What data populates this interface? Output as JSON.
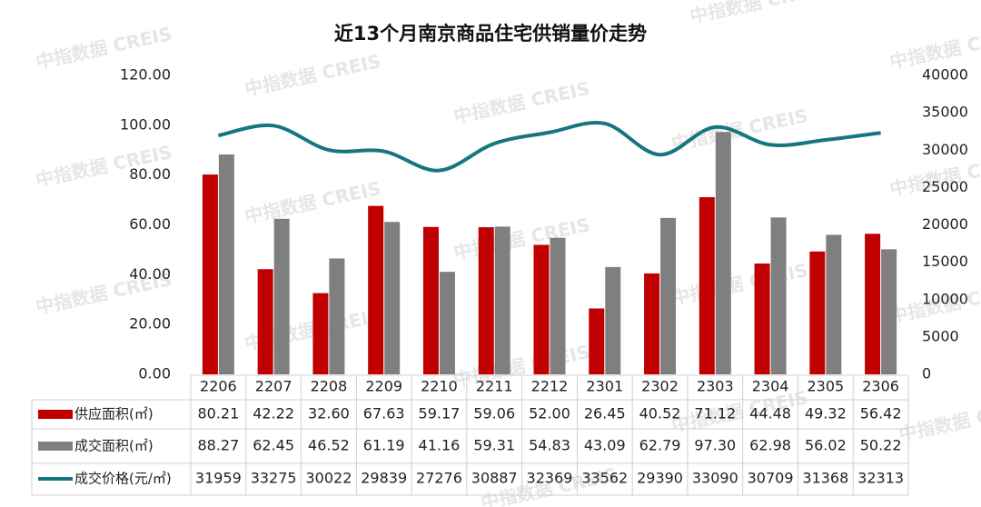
{
  "watermark": "中指数据 CREIS",
  "chart_data": {
    "type": "bar-line",
    "title": "近13个月南京商品住宅供销量价走势",
    "categories": [
      "2206",
      "2207",
      "2208",
      "2209",
      "2210",
      "2211",
      "2212",
      "2301",
      "2302",
      "2303",
      "2304",
      "2305",
      "2306"
    ],
    "series": [
      {
        "name": "供应面积(㎡)",
        "type": "bar",
        "color": "#c00000",
        "values": [
          80.21,
          42.22,
          32.6,
          67.63,
          59.17,
          59.06,
          52,
          26.45,
          40.52,
          71.12,
          44.48,
          49.32,
          56.42
        ],
        "value_labels": [
          "80.21",
          "42.22",
          "32.60",
          "67.63",
          "59.17",
          "59.06",
          "52.00",
          "26.45",
          "40.52",
          "71.12",
          "44.48",
          "49.32",
          "56.42"
        ]
      },
      {
        "name": "成交面积(㎡)",
        "type": "bar",
        "color": "#7f7f7f",
        "values": [
          88.27,
          62.45,
          46.52,
          61.19,
          41.16,
          59.31,
          54.83,
          43.09,
          62.79,
          97.3,
          62.98,
          56.02,
          50.22
        ],
        "value_labels": [
          "88.27",
          "62.45",
          "46.52",
          "61.19",
          "41.16",
          "59.31",
          "54.83",
          "43.09",
          "62.79",
          "97.30",
          "62.98",
          "56.02",
          "50.22"
        ]
      },
      {
        "name": "成交价格(元/㎡)",
        "type": "line",
        "axis": "y2",
        "color": "#16767e",
        "values": [
          31959,
          33275,
          30022,
          29839,
          27276,
          30887,
          32369,
          33562,
          29390,
          33090,
          30709,
          31368,
          32313
        ]
      }
    ],
    "ylim": [
      0,
      120
    ],
    "yticks": [
      {
        "value": 0,
        "label": "0.00"
      },
      {
        "value": 20,
        "label": "20.00"
      },
      {
        "value": 40,
        "label": "40.00"
      },
      {
        "value": 60,
        "label": "60.00"
      },
      {
        "value": 80,
        "label": "80.00"
      },
      {
        "value": 100,
        "label": "100.00"
      },
      {
        "value": 120,
        "label": "120.00"
      }
    ],
    "y2lim": [
      0,
      40000
    ],
    "y2ticks": [
      0,
      5000,
      10000,
      15000,
      20000,
      25000,
      30000,
      35000,
      40000
    ]
  }
}
